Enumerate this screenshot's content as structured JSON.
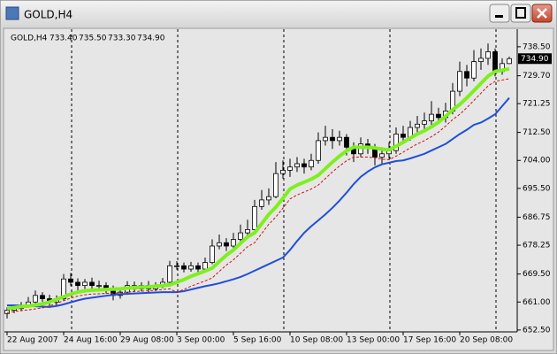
{
  "window": {
    "title": "GOLD,H4"
  },
  "chart_data": {
    "type": "candlestick",
    "symbol": "GOLD,H4",
    "header_labels": [
      "733.40",
      "735.50",
      "733.30",
      "734.90"
    ],
    "open": [
      657.5,
      658.5,
      659,
      660,
      661,
      663,
      662,
      661,
      662,
      668,
      667,
      666,
      667,
      666,
      666,
      665,
      663,
      664,
      666,
      665,
      666,
      665,
      666,
      667,
      672,
      672,
      671,
      672,
      671,
      673,
      678,
      679,
      678,
      680,
      682,
      683,
      690,
      692,
      693,
      700,
      701,
      702,
      703,
      702,
      704,
      710,
      711,
      710,
      711,
      708,
      706,
      709,
      708,
      705,
      706,
      707,
      712,
      711,
      714,
      715,
      716,
      718,
      717,
      719,
      725,
      731,
      729,
      734,
      735,
      737,
      731,
      733.4
    ],
    "high": [
      659.5,
      660.2,
      661,
      662.5,
      664.5,
      664,
      663.2,
      663,
      669.5,
      669.8,
      668.2,
      668,
      668.4,
      667.5,
      667,
      666,
      665.2,
      667.3,
      667.2,
      667,
      667.4,
      667,
      668.3,
      673.5,
      673.4,
      673,
      673.2,
      673,
      674.5,
      680,
      681.5,
      680.4,
      682,
      684.5,
      686,
      692,
      695,
      695.5,
      703.5,
      704,
      704.5,
      705,
      704.5,
      706,
      712.5,
      714.5,
      713.5,
      713,
      712,
      709.5,
      711,
      710.5,
      709,
      708,
      709.5,
      714,
      714.5,
      716,
      717.5,
      718.5,
      722,
      720,
      721.5,
      727.5,
      734,
      733,
      737.5,
      738,
      739.5,
      738,
      735,
      735.5
    ],
    "low": [
      656,
      657.6,
      658.2,
      659.4,
      660.2,
      661,
      659.8,
      660,
      661.5,
      665.8,
      664.6,
      665,
      664.8,
      664.5,
      663.6,
      661.5,
      662,
      663.2,
      664,
      664.2,
      664,
      664.3,
      665.2,
      666.5,
      670.8,
      670,
      670.2,
      669.8,
      670.4,
      672.5,
      677,
      676.5,
      676.8,
      679,
      681,
      682.5,
      689,
      690.5,
      692.5,
      698.5,
      699,
      700.5,
      700,
      701,
      703,
      708.5,
      707.5,
      708.5,
      705.5,
      703.5,
      705,
      706,
      702.5,
      703,
      704.5,
      706,
      709,
      710,
      712.5,
      713.5,
      714.5,
      715,
      715.5,
      718,
      723.5,
      726.5,
      728,
      731.5,
      733,
      729.5,
      730,
      733.3
    ],
    "close": [
      658.5,
      659,
      660,
      661,
      663,
      662,
      661,
      662,
      668,
      667,
      666,
      667,
      666,
      666,
      665,
      663,
      664,
      666,
      665,
      666,
      665,
      666,
      667,
      672,
      672,
      671,
      672,
      671,
      673,
      678,
      679,
      678,
      680,
      682,
      683,
      690,
      692,
      693,
      700,
      701,
      702,
      703,
      702,
      704,
      710,
      711,
      710,
      711,
      708,
      706,
      709,
      708,
      705,
      706,
      707,
      712,
      711,
      714,
      715,
      716,
      718,
      717,
      719,
      725,
      731,
      729,
      734,
      735,
      737,
      731,
      733.4,
      734.9
    ],
    "lines": [
      {
        "color": "#1f4fd8",
        "width": 2,
        "style": "solid",
        "values": [
          660,
          660,
          659.9,
          659.8,
          659.7,
          659.6,
          659.5,
          659.8,
          660.3,
          660.9,
          661.5,
          662,
          662.3,
          662.6,
          662.9,
          663.2,
          663.4,
          663.5,
          663.6,
          663.7,
          663.8,
          663.9,
          664,
          664,
          664,
          664.3,
          664.8,
          665.3,
          665.8,
          666.2,
          666.7,
          667.3,
          667.9,
          668.6,
          669.5,
          670.5,
          671.5,
          672.5,
          673.5,
          674.5,
          676.8,
          679.5,
          682,
          684,
          685.8,
          687.6,
          689.6,
          691.8,
          694.2,
          696.8,
          699,
          700.6,
          701.9,
          702.8,
          703.3,
          703.8,
          704,
          704.6,
          705.3,
          706,
          707,
          708,
          709,
          710.5,
          712,
          713.3,
          714.8,
          715.5,
          716.7,
          718,
          720.5,
          723
        ]
      },
      {
        "color": "#d01010",
        "width": 1,
        "style": "dashed",
        "values": [
          657.8,
          658.1,
          658.4,
          658.6,
          658.9,
          659.2,
          659.8,
          660.6,
          661.4,
          662.2,
          662.8,
          663.2,
          663.4,
          663.5,
          663.6,
          663.7,
          663.8,
          664,
          664.2,
          664.3,
          664.4,
          664.6,
          664.8,
          665,
          664,
          664.8,
          665.8,
          666.6,
          667.4,
          668.3,
          670.3,
          672.2,
          673.8,
          675.8,
          677.8,
          679,
          681.8,
          684.6,
          686.8,
          689.5,
          692.3,
          693.5,
          694.4,
          695.3,
          696.5,
          698.5,
          700.5,
          702.3,
          703.9,
          705,
          705,
          705,
          704.8,
          704.4,
          704.2,
          705.3,
          706.5,
          707.8,
          709,
          710,
          711.2,
          712.6,
          714.4,
          716.4,
          718,
          720,
          722.2,
          724.4,
          726.6,
          728,
          728.4,
          728.8
        ]
      },
      {
        "color": "#7fef1f",
        "width": 4,
        "style": "solid",
        "values": [
          659,
          659.3,
          659.6,
          659.8,
          660.1,
          660.4,
          661,
          661.8,
          662.6,
          663.4,
          664,
          664.4,
          664.6,
          664.7,
          664.8,
          664.9,
          665,
          665.2,
          665.4,
          665.5,
          665.6,
          665.8,
          666,
          666.2,
          667,
          667.8,
          668.8,
          669.6,
          670.4,
          671.3,
          673.3,
          675.2,
          676.8,
          678.8,
          680.8,
          682,
          684.8,
          687.6,
          689.8,
          692.5,
          695.3,
          696.5,
          697.4,
          698.3,
          699.5,
          701.5,
          703.5,
          705.3,
          706.9,
          708,
          708,
          708,
          707.8,
          707.4,
          707.2,
          708.3,
          709.5,
          710.8,
          712,
          713,
          714.2,
          715.6,
          717.4,
          719.4,
          721,
          723,
          725.2,
          727.4,
          729.6,
          731,
          731.4,
          731.8
        ]
      }
    ],
    "last_price": {
      "value": 734.9,
      "label": "734.90"
    },
    "ylim": [
      652.2,
      743.3
    ],
    "yticks": [
      {
        "value": 738.5,
        "label": "738.50"
      },
      {
        "value": 729.7,
        "label": "729.70"
      },
      {
        "value": 721.25,
        "label": "721.25"
      },
      {
        "value": 712.5,
        "label": "712.50"
      },
      {
        "value": 704,
        "label": "704.00"
      },
      {
        "value": 695.5,
        "label": "695.50"
      },
      {
        "value": 686.75,
        "label": "686.75"
      },
      {
        "value": 678.25,
        "label": "678.25"
      },
      {
        "value": 669.5,
        "label": "669.50"
      },
      {
        "value": 661,
        "label": "661.00"
      },
      {
        "value": 652.5,
        "label": "652.50"
      }
    ],
    "xticks": [
      {
        "value": 0,
        "label": "22 Aug 2007"
      },
      {
        "value": 8,
        "label": "24 Aug 16:00"
      },
      {
        "value": 16,
        "label": "29 Aug 08:00"
      },
      {
        "value": 24,
        "label": "3 Sep 00:00"
      },
      {
        "value": 32,
        "label": "5 Sep 16:00"
      },
      {
        "value": 40,
        "label": "10 Sep 08:00"
      },
      {
        "value": 48,
        "label": "13 Sep 00:00"
      },
      {
        "value": 56,
        "label": "17 Sep 16:00"
      },
      {
        "value": 64,
        "label": "20 Sep 08:00"
      }
    ]
  }
}
